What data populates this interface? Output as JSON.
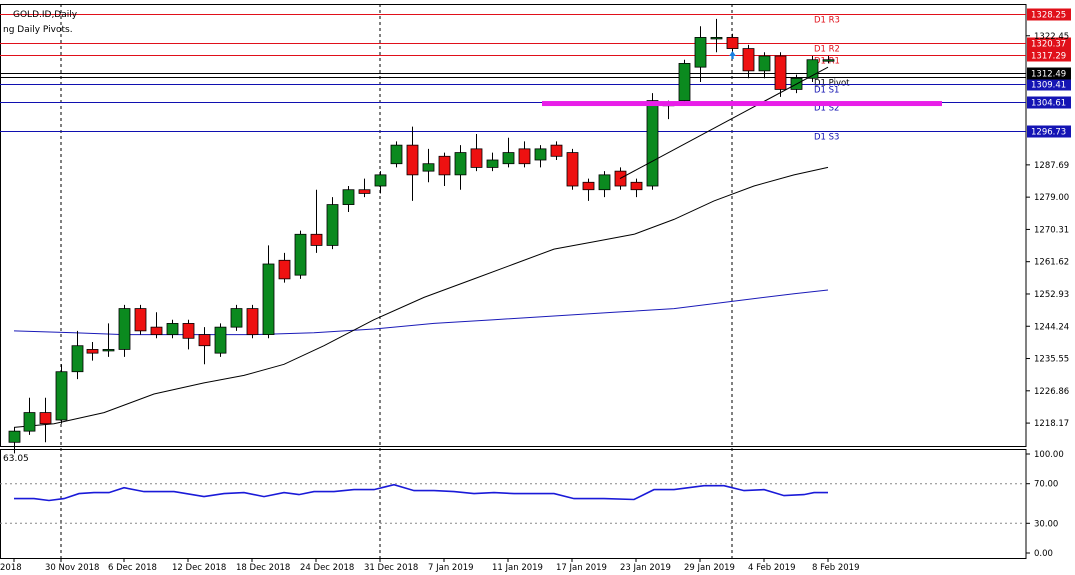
{
  "chart_data": {
    "type": "candlestick",
    "symbol_label": "GOLD.ID,Daily",
    "indicator_label": "ng Daily Pivots.",
    "price_axis": {
      "min": 1212,
      "max": 1331,
      "ticks": [
        "1322.45",
        "1287.69",
        "1279.00",
        "1270.31",
        "1261.62",
        "1252.93",
        "1244.24",
        "1235.55",
        "1226.86",
        "1218.17"
      ]
    },
    "pivots": [
      {
        "name": "D1 R3",
        "value": 1328.25,
        "price_label": "1328.25",
        "color": "#e0101a",
        "tag": "red"
      },
      {
        "name": "D1 R2",
        "value": 1320.37,
        "price_label": "1320.37",
        "color": "#e0101a",
        "tag": "red"
      },
      {
        "name": "D1 R1",
        "value": 1317.29,
        "price_label": "1317.29",
        "color": "#e0101a",
        "tag": "red"
      },
      {
        "name": "D1 Pivot",
        "value": 1311.4,
        "price_label": "",
        "color": "#000000",
        "tag": "none"
      },
      {
        "name": "D1 S1",
        "value": 1309.41,
        "price_label": "1309.41",
        "color": "#1010b0",
        "tag": "blue"
      },
      {
        "name": "D1 S2",
        "value": 1304.61,
        "price_label": "1304.61",
        "color": "#1010b0",
        "tag": "blue"
      },
      {
        "name": "D1 S3",
        "value": 1296.73,
        "price_label": "1296.73",
        "color": "#1010b0",
        "tag": "blue"
      }
    ],
    "current_price": {
      "value": 1312.49,
      "price_label": "1312.49"
    },
    "candles": [
      {
        "x": 0,
        "o": 1213,
        "h": 1217,
        "l": 1210,
        "c": 1216
      },
      {
        "x": 15,
        "o": 1216,
        "h": 1225,
        "l": 1215,
        "c": 1221
      },
      {
        "x": 31,
        "o": 1221,
        "h": 1225,
        "l": 1213,
        "c": 1218
      },
      {
        "x": 47,
        "o": 1219,
        "h": 1234,
        "l": 1218,
        "c": 1232
      },
      {
        "x": 63,
        "o": 1232,
        "h": 1243,
        "l": 1230,
        "c": 1239
      },
      {
        "x": 78,
        "o": 1238,
        "h": 1240,
        "l": 1235,
        "c": 1237
      },
      {
        "x": 94,
        "o": 1238,
        "h": 1245,
        "l": 1236,
        "c": 1238
      },
      {
        "x": 110,
        "o": 1238,
        "h": 1250,
        "l": 1236,
        "c": 1249
      },
      {
        "x": 126,
        "o": 1249,
        "h": 1250,
        "l": 1242,
        "c": 1243
      },
      {
        "x": 142,
        "o": 1244,
        "h": 1248,
        "l": 1241,
        "c": 1242
      },
      {
        "x": 158,
        "o": 1242,
        "h": 1246,
        "l": 1241,
        "c": 1245
      },
      {
        "x": 174,
        "o": 1245,
        "h": 1246,
        "l": 1238,
        "c": 1241
      },
      {
        "x": 190,
        "o": 1242,
        "h": 1244,
        "l": 1234,
        "c": 1239
      },
      {
        "x": 206,
        "o": 1237,
        "h": 1245,
        "l": 1236,
        "c": 1244
      },
      {
        "x": 222,
        "o": 1244,
        "h": 1250,
        "l": 1243,
        "c": 1249
      },
      {
        "x": 238,
        "o": 1249,
        "h": 1250,
        "l": 1241,
        "c": 1242
      },
      {
        "x": 254,
        "o": 1242,
        "h": 1266,
        "l": 1241,
        "c": 1261
      },
      {
        "x": 270,
        "o": 1262,
        "h": 1264,
        "l": 1256,
        "c": 1257
      },
      {
        "x": 286,
        "o": 1258,
        "h": 1270,
        "l": 1257,
        "c": 1269
      },
      {
        "x": 302,
        "o": 1269,
        "h": 1281,
        "l": 1264,
        "c": 1266
      },
      {
        "x": 318,
        "o": 1266,
        "h": 1279,
        "l": 1265,
        "c": 1277
      },
      {
        "x": 334,
        "o": 1277,
        "h": 1282,
        "l": 1275,
        "c": 1281
      },
      {
        "x": 350,
        "o": 1281,
        "h": 1284,
        "l": 1279,
        "c": 1280
      },
      {
        "x": 366,
        "o": 1282,
        "h": 1286,
        "l": 1280,
        "c": 1285
      },
      {
        "x": 382,
        "o": 1288,
        "h": 1294,
        "l": 1287,
        "c": 1293
      },
      {
        "x": 398,
        "o": 1293,
        "h": 1298,
        "l": 1278,
        "c": 1285
      },
      {
        "x": 414,
        "o": 1286,
        "h": 1292,
        "l": 1283,
        "c": 1288
      },
      {
        "x": 430,
        "o": 1290,
        "h": 1291,
        "l": 1282,
        "c": 1285
      },
      {
        "x": 446,
        "o": 1285,
        "h": 1293,
        "l": 1281,
        "c": 1291
      },
      {
        "x": 462,
        "o": 1292,
        "h": 1296,
        "l": 1286,
        "c": 1287
      },
      {
        "x": 478,
        "o": 1287,
        "h": 1291,
        "l": 1286,
        "c": 1289
      },
      {
        "x": 494,
        "o": 1288,
        "h": 1295,
        "l": 1287,
        "c": 1291
      },
      {
        "x": 510,
        "o": 1292,
        "h": 1294,
        "l": 1287,
        "c": 1288
      },
      {
        "x": 526,
        "o": 1289,
        "h": 1293,
        "l": 1287,
        "c": 1292
      },
      {
        "x": 542,
        "o": 1293,
        "h": 1294,
        "l": 1289,
        "c": 1290
      },
      {
        "x": 558,
        "o": 1291,
        "h": 1292,
        "l": 1281,
        "c": 1282
      },
      {
        "x": 574,
        "o": 1283,
        "h": 1284,
        "l": 1278,
        "c": 1281
      },
      {
        "x": 590,
        "o": 1281,
        "h": 1286,
        "l": 1279,
        "c": 1285
      },
      {
        "x": 606,
        "o": 1286,
        "h": 1287,
        "l": 1281,
        "c": 1282
      },
      {
        "x": 622,
        "o": 1283,
        "h": 1284,
        "l": 1279,
        "c": 1281
      },
      {
        "x": 638,
        "o": 1282,
        "h": 1307,
        "l": 1281,
        "c": 1305
      },
      {
        "x": 654,
        "o": 1304,
        "h": 1305,
        "l": 1300,
        "c": 1304
      },
      {
        "x": 670,
        "o": 1305,
        "h": 1316,
        "l": 1304,
        "c": 1315
      },
      {
        "x": 686,
        "o": 1314,
        "h": 1325,
        "l": 1310,
        "c": 1322
      },
      {
        "x": 702,
        "o": 1322,
        "h": 1327,
        "l": 1318,
        "c": 1322
      },
      {
        "x": 718,
        "o": 1322,
        "h": 1323,
        "l": 1318,
        "c": 1319
      },
      {
        "x": 734,
        "o": 1319,
        "h": 1320,
        "l": 1311,
        "c": 1313
      },
      {
        "x": 750,
        "o": 1313,
        "h": 1318,
        "l": 1311,
        "c": 1317
      },
      {
        "x": 766,
        "o": 1317,
        "h": 1318,
        "l": 1306,
        "c": 1308
      },
      {
        "x": 782,
        "o": 1308,
        "h": 1312,
        "l": 1307,
        "c": 1311
      },
      {
        "x": 798,
        "o": 1311,
        "h": 1317,
        "l": 1310,
        "c": 1316
      },
      {
        "x": 814,
        "o": 1316,
        "h": 1317,
        "l": 1315,
        "c": 1316
      }
    ],
    "ma_fast": [
      [
        0,
        1217
      ],
      [
        40,
        1218
      ],
      [
        90,
        1221
      ],
      [
        140,
        1226
      ],
      [
        190,
        1229
      ],
      [
        230,
        1231
      ],
      [
        270,
        1234
      ],
      [
        310,
        1239
      ],
      [
        360,
        1246
      ],
      [
        410,
        1252
      ],
      [
        460,
        1257
      ],
      [
        500,
        1261
      ],
      [
        540,
        1265
      ],
      [
        580,
        1267
      ],
      [
        620,
        1269
      ],
      [
        660,
        1273
      ],
      [
        700,
        1278
      ],
      [
        740,
        1282
      ],
      [
        780,
        1285
      ],
      [
        814,
        1287
      ]
    ],
    "ma_slow": [
      [
        0,
        1243
      ],
      [
        60,
        1242.5
      ],
      [
        110,
        1242
      ],
      [
        180,
        1242
      ],
      [
        240,
        1242
      ],
      [
        300,
        1242.5
      ],
      [
        360,
        1243.5
      ],
      [
        420,
        1245
      ],
      [
        480,
        1246
      ],
      [
        540,
        1247
      ],
      [
        600,
        1248
      ],
      [
        660,
        1249
      ],
      [
        720,
        1251
      ],
      [
        780,
        1253
      ],
      [
        814,
        1254
      ]
    ],
    "trendline": [
      [
        606,
        1284
      ],
      [
        814,
        1314
      ]
    ],
    "highlight_band": {
      "x_start": 542,
      "x_end": 942,
      "value": 1304.2
    },
    "vertical_markers": [
      47,
      366,
      718
    ],
    "up_arrow": {
      "x": 718,
      "value": 1317
    },
    "x_labels": [
      "2018",
      "30 Nov 2018",
      "6 Dec 2018",
      "12 Dec 2018",
      "18 Dec 2018",
      "24 Dec 2018",
      "31 Dec 2018",
      "7 Jan 2019",
      "11 Jan 2019",
      "17 Jan 2019",
      "23 Jan 2019",
      "29 Jan 2019",
      "4 Feb 2019",
      "8 Feb 2019"
    ],
    "oscillator": {
      "label": "63.05",
      "range": [
        0,
        100
      ],
      "ticks": [
        "100.00",
        "70.00",
        "30.00",
        "0.00"
      ],
      "points": [
        [
          0,
          55
        ],
        [
          20,
          55
        ],
        [
          35,
          53
        ],
        [
          50,
          55
        ],
        [
          65,
          60
        ],
        [
          80,
          61
        ],
        [
          95,
          61
        ],
        [
          110,
          66
        ],
        [
          130,
          62
        ],
        [
          160,
          62
        ],
        [
          190,
          57
        ],
        [
          210,
          60
        ],
        [
          230,
          61
        ],
        [
          250,
          57
        ],
        [
          270,
          61
        ],
        [
          285,
          59
        ],
        [
          300,
          62
        ],
        [
          320,
          62
        ],
        [
          340,
          64
        ],
        [
          360,
          64
        ],
        [
          380,
          69
        ],
        [
          400,
          63
        ],
        [
          420,
          63
        ],
        [
          440,
          62
        ],
        [
          460,
          60
        ],
        [
          480,
          61
        ],
        [
          500,
          60
        ],
        [
          540,
          60
        ],
        [
          560,
          55
        ],
        [
          590,
          55
        ],
        [
          620,
          54
        ],
        [
          640,
          64
        ],
        [
          660,
          64
        ],
        [
          690,
          68
        ],
        [
          710,
          68
        ],
        [
          730,
          63
        ],
        [
          750,
          64
        ],
        [
          770,
          58
        ],
        [
          790,
          59
        ],
        [
          800,
          61
        ],
        [
          814,
          61
        ]
      ]
    }
  }
}
